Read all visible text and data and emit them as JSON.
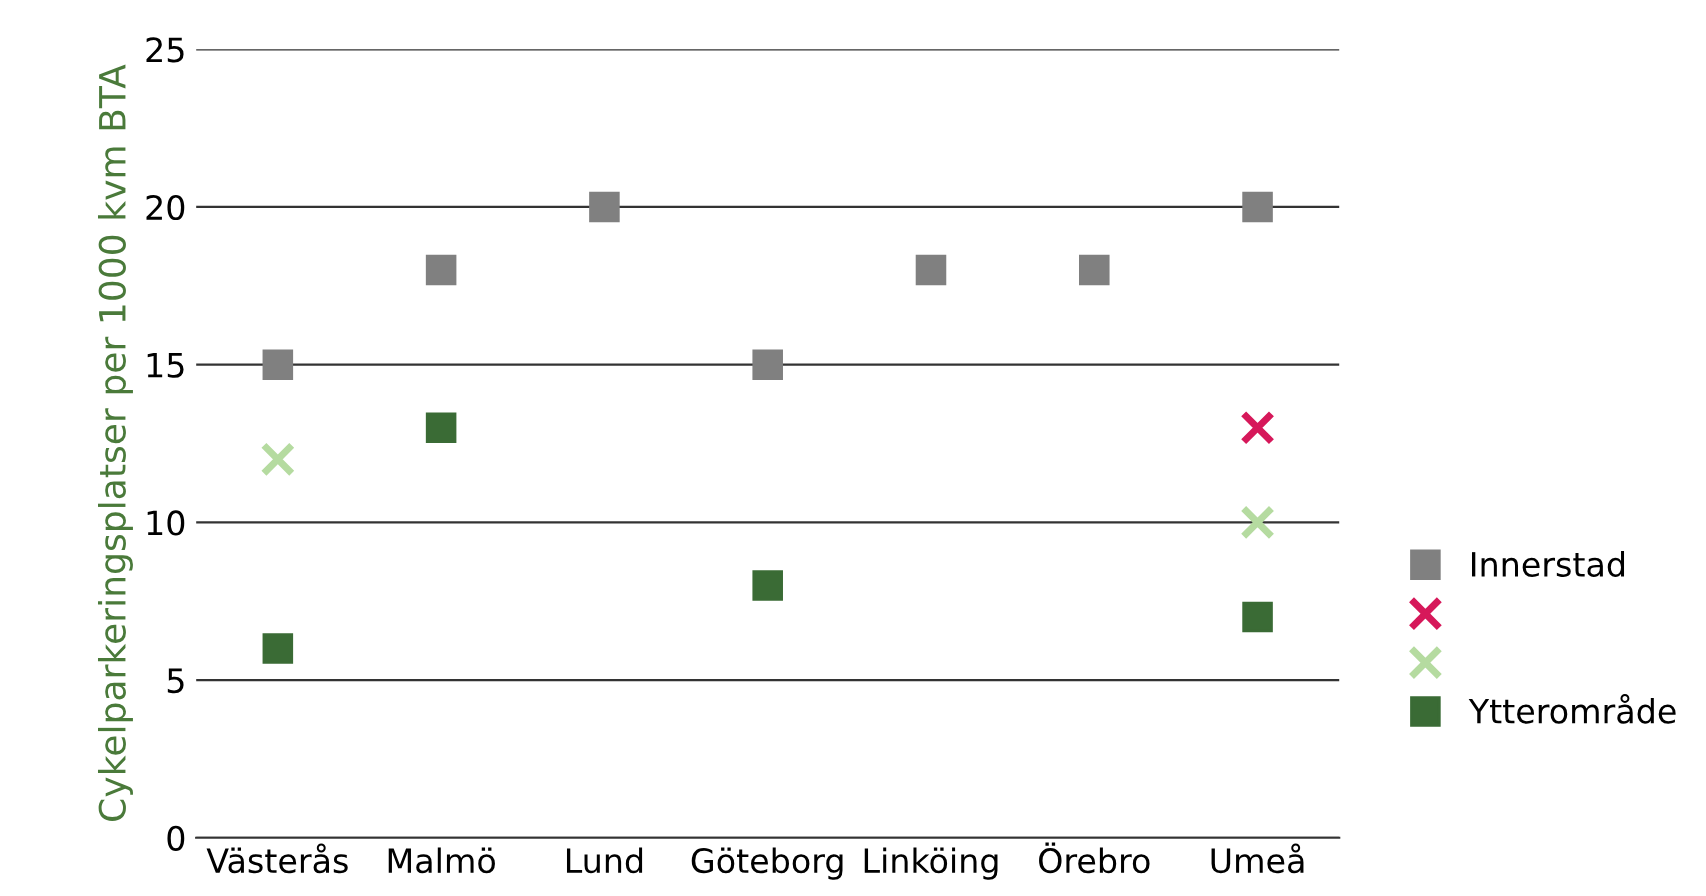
{
  "chart_data": {
    "type": "scatter",
    "ylabel": "Cykelparkeringsplatser per 1000 kvm BTA",
    "categories": [
      "Västerås",
      "Malmö",
      "Lund",
      "Göteborg",
      "Linköing",
      "Örebro",
      "Umeå"
    ],
    "series": [
      {
        "name": "Innerstad",
        "color": "#808080",
        "marker": "square",
        "values": [
          15,
          18,
          20,
          15,
          18,
          18,
          20
        ]
      },
      {
        "color": "#d6185a",
        "marker": "cross",
        "values": [
          null,
          null,
          null,
          null,
          null,
          null,
          13
        ]
      },
      {
        "color": "#b5dba0",
        "marker": "cross",
        "values": [
          12,
          null,
          null,
          null,
          null,
          null,
          10
        ]
      },
      {
        "name": "Ytterområde",
        "color": "#3a6b35",
        "marker": "square",
        "values": [
          6,
          13,
          null,
          8,
          null,
          null,
          7
        ]
      }
    ],
    "ylim": [
      0,
      25
    ],
    "yticks": [
      0,
      5,
      10,
      15,
      20,
      25
    ],
    "grid": "y",
    "legend": "right"
  }
}
